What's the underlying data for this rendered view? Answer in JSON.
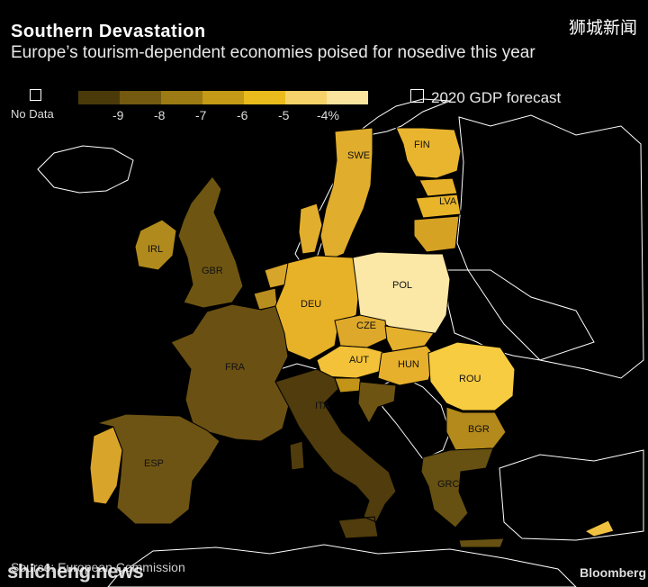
{
  "title": "Southern Devastation",
  "subtitle": "Europe’s tourism-dependent economies poised for nosedive this year",
  "brand_cn": "狮城新闻",
  "legend": {
    "no_data_label": "No Data",
    "ticks": [
      "-9",
      "-8",
      "-7",
      "-6",
      "-5",
      "-4%"
    ],
    "colors": [
      "#4a3a0a",
      "#735a10",
      "#9c7a14",
      "#c49a16",
      "#eabb1c",
      "#f6d26a",
      "#fbe49e"
    ],
    "forecast_label": "2020 GDP forecast"
  },
  "countries": [
    {
      "code": "SWE",
      "label": "SWE",
      "color": "#e0ad2c"
    },
    {
      "code": "FIN",
      "label": "FIN",
      "color": "#e9b52e"
    },
    {
      "code": "LVA",
      "label": "LVA",
      "color": "#e8b428"
    },
    {
      "code": "IRL",
      "label": "IRL",
      "color": "#b08a1c"
    },
    {
      "code": "GBR",
      "label": "GBR",
      "color": "#6e5612"
    },
    {
      "code": "DEU",
      "label": "DEU",
      "color": "#e8b228"
    },
    {
      "code": "POL",
      "label": "POL",
      "color": "#fbe7a6"
    },
    {
      "code": "CZE",
      "label": "CZE",
      "color": "#dea82a"
    },
    {
      "code": "AUT",
      "label": "AUT",
      "color": "#f3c238"
    },
    {
      "code": "HUN",
      "label": "HUN",
      "color": "#e7b02c"
    },
    {
      "code": "ROU",
      "label": "ROU",
      "color": "#f8cc40"
    },
    {
      "code": "BGR",
      "label": "BGR",
      "color": "#b48a1c"
    },
    {
      "code": "FRA",
      "label": "FRA",
      "color": "#6a5012"
    },
    {
      "code": "ITA",
      "label": "ITA",
      "color": "#503c0c"
    },
    {
      "code": "ESP",
      "label": "ESP",
      "color": "#6e5414"
    },
    {
      "code": "GRC",
      "label": "GRC",
      "color": "#665012"
    }
  ],
  "source": "Source: European Commission",
  "watermark": "shicheng.news",
  "logo": "Bloomberg"
}
